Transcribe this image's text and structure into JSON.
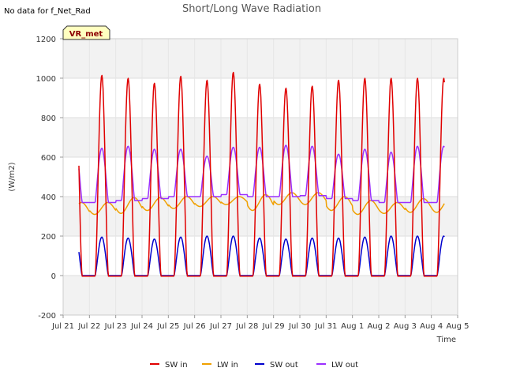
{
  "chart_data": {
    "type": "line",
    "title": "Short/Long Wave Radiation",
    "no_data_note": "No data for f_Net_Rad",
    "badge": "VR_met",
    "xlabel": "Time",
    "ylabel": "(W/m2)",
    "xlim": [
      0,
      15
    ],
    "ylim": [
      -200,
      1200
    ],
    "yticks": [
      -200,
      0,
      200,
      400,
      600,
      800,
      1000,
      1200
    ],
    "xticks": [
      {
        "x": 0,
        "label": "Jul 21"
      },
      {
        "x": 1,
        "label": "Jul 22"
      },
      {
        "x": 2,
        "label": "Jul 23"
      },
      {
        "x": 3,
        "label": "Jul 24"
      },
      {
        "x": 4,
        "label": "Jul 25"
      },
      {
        "x": 5,
        "label": "Jul 26"
      },
      {
        "x": 6,
        "label": "Jul 27"
      },
      {
        "x": 7,
        "label": "Jul 28"
      },
      {
        "x": 8,
        "label": "Jul 29"
      },
      {
        "x": 9,
        "label": "Jul 30"
      },
      {
        "x": 10,
        "label": "Jul 31"
      },
      {
        "x": 11,
        "label": "Aug 1"
      },
      {
        "x": 12,
        "label": "Aug 2"
      },
      {
        "x": 13,
        "label": "Aug 3"
      },
      {
        "x": 14,
        "label": "Aug 4"
      },
      {
        "x": 15,
        "label": "Aug 5"
      }
    ],
    "grid": true,
    "legend_position": "bottom",
    "data_start_day": 0.6,
    "data_end_day": 14.5,
    "series": [
      {
        "name": "SW in",
        "color": "#e00000",
        "daily_peak": [
          1020,
          1015,
          1000,
          975,
          1010,
          990,
          1030,
          970,
          950,
          960,
          990,
          1000,
          1000,
          1000
        ]
      },
      {
        "name": "LW in",
        "color": "#f0a000",
        "daily_min": [
          300,
          310,
          315,
          330,
          340,
          350,
          360,
          330,
          360,
          360,
          330,
          310,
          315,
          320
        ],
        "daily_max": [
          370,
          370,
          395,
          395,
          400,
          400,
          400,
          410,
          420,
          420,
          400,
          380,
          370,
          390
        ]
      },
      {
        "name": "SW out",
        "color": "#0000cc",
        "daily_peak": [
          195,
          195,
          190,
          185,
          195,
          200,
          200,
          190,
          185,
          190,
          190,
          195,
          200,
          200
        ]
      },
      {
        "name": "LW out",
        "color": "#9b30ff",
        "daily_min": [
          370,
          370,
          380,
          390,
          400,
          400,
          410,
          400,
          400,
          405,
          390,
          380,
          370,
          370
        ],
        "daily_max": [
          640,
          645,
          655,
          640,
          640,
          605,
          650,
          650,
          660,
          655,
          615,
          640,
          625,
          655
        ]
      }
    ]
  }
}
